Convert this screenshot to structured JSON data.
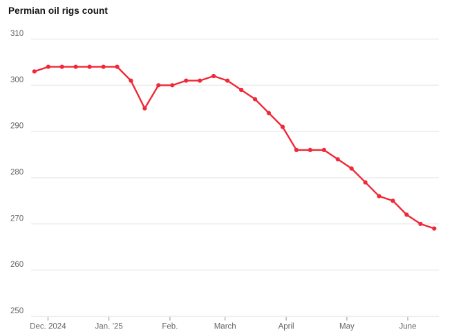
{
  "colors": {
    "background": "#ffffff",
    "title_text": "#111111",
    "grid_line": "#ececec",
    "axis_text": "#666666",
    "tick_mark": "#8a8a8a",
    "line": "#f02837"
  },
  "chart_data": {
    "type": "line",
    "title": "Permian oil rigs count",
    "x_unit": "week",
    "series": [
      {
        "name": "Permian oil rigs count",
        "color": "#f02837",
        "values": [
          303,
          304,
          304,
          304,
          304,
          304,
          304,
          301,
          295,
          300,
          300,
          301,
          301,
          302,
          301,
          299,
          297,
          294,
          291,
          286,
          286,
          286,
          284,
          282,
          279,
          276,
          275,
          272,
          270,
          269
        ]
      }
    ],
    "x_ticks": [
      {
        "label": "Dec. 2024",
        "week": 0.98
      },
      {
        "label": "Jan. ’25",
        "week": 5.41
      },
      {
        "label": "Feb.",
        "week": 9.83
      },
      {
        "label": "March",
        "week": 13.83
      },
      {
        "label": "April",
        "week": 18.26
      },
      {
        "label": "May",
        "week": 22.66
      },
      {
        "label": "June",
        "week": 27.08
      }
    ],
    "y_ticks": [
      310,
      300,
      290,
      280,
      270,
      260,
      250
    ],
    "ylim": [
      250,
      310
    ],
    "grid": "horizontal",
    "legend": "none",
    "markers": true
  }
}
